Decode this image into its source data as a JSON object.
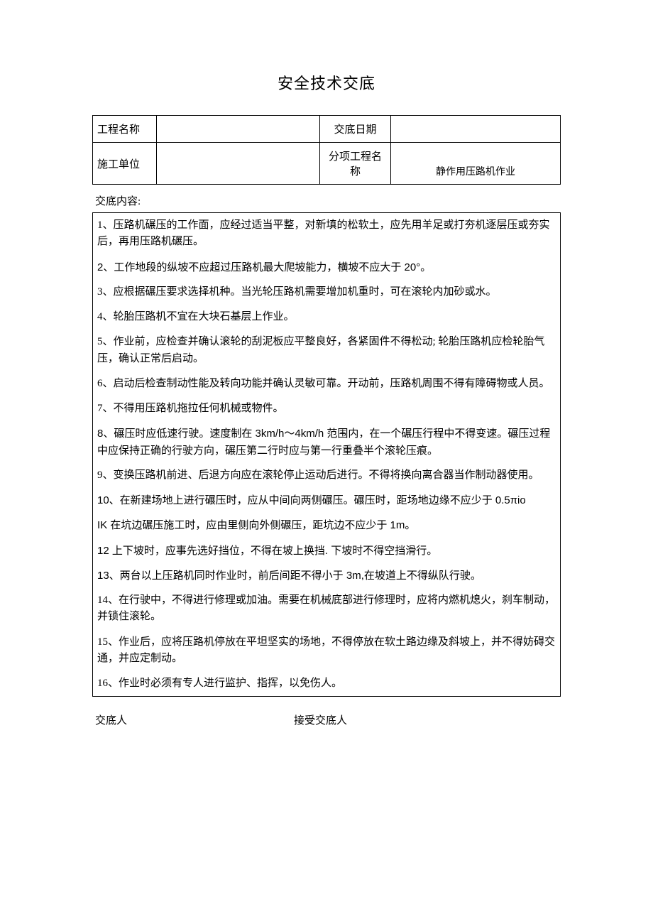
{
  "title": "安全技术交底",
  "header": {
    "row1_label1": "工程名称",
    "row1_value1": "",
    "row1_label2": "交底日期",
    "row1_value2": "",
    "row2_label1": "施工单位",
    "row2_value1": "",
    "row2_label2": "分项工程名称",
    "row2_value2": "静作用压路机作业"
  },
  "content_label": "交底内容:",
  "items": [
    "1、压路机碾压的工作面，应经过适当平整，对新填的松软土，应先用羊足或打夯机逐层压或夯实后，再用压路机碾压。",
    "2、工作地段的纵坡不应超过压路机最大爬坡能力，横坡不应大于 20°。",
    "3、应根据碾压要求选择机种。当光轮压路机需要增加机重时，可在滚轮内加砂或水。",
    "4、轮胎压路机不宜在大块石基层上作业。",
    "5、作业前，应检查并确认滚轮的刮泥板应平整良好，各紧固件不得松动; 轮胎压路机应检轮胎气压，确认正常后启动。",
    "6、启动后检查制动性能及转向功能并确认灵敏可靠。开动前，压路机周围不得有障碍物或人员。",
    "7、不得用压路机拖拉任何机械或物件。",
    "8、碾压时应低速行驶。速度制在 3km/h〜4km/h 范围内，在一个碾压行程中不得变速。碾压过程中应保持正确的行驶方向，碾压第二行时应与第一行重叠半个滚轮压痕。",
    "9、变换压路机前进、后退方向应在滚轮停止运动后进行。不得将换向离合器当作制动器使用。",
    "10、在新建场地上进行碾压时，应从中间向两侧碾压。碾压时，距场地边缘不应少于 0.5πio",
    "IK 在坑边碾压施工时，应由里侧向外侧碾压，距坑边不应少于 1m。",
    "12 上下坡时，应事先选好挡位，不得在坡上换挡. 下坡时不得空挡滑行。",
    "13、两台以上压路机同时作业时，前后间距不得小于 3m,在坡道上不得纵队行驶。",
    "14、在行驶中，不得进行修理或加油。需要在机械底部进行修理时，应将内燃机熄火，刹车制动，并锁住滚轮。",
    "15、作业后，应将压路机停放在平坦坚实的场地，不得停放在软土路边缘及斜坡上，并不得妨碍交通，并应定制动。",
    "16、作业时必须有专人进行监护、指挥，以免伤人。"
  ],
  "footer": {
    "label1": "交底人",
    "label2": "接受交底人"
  },
  "colors": {
    "text": "#000000",
    "background": "#ffffff",
    "border": "#000000"
  }
}
